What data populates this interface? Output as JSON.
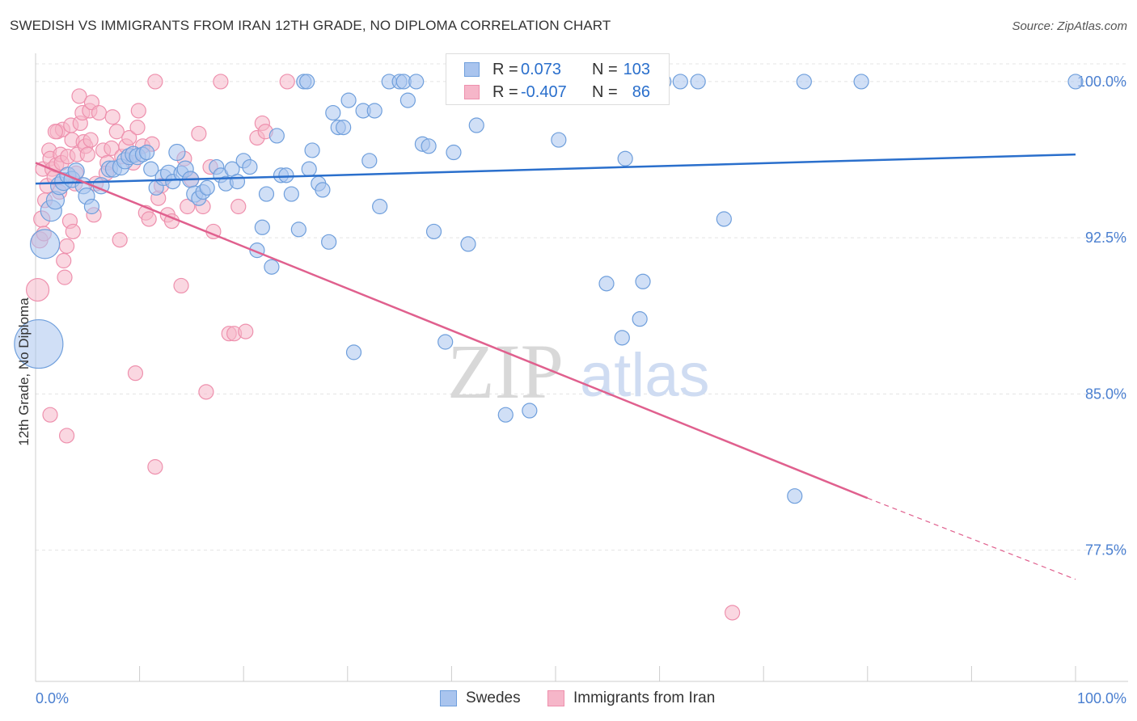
{
  "title": "SWEDISH VS IMMIGRANTS FROM IRAN 12TH GRADE, NO DIPLOMA CORRELATION CHART",
  "source": "Source: ZipAtlas.com",
  "watermark": {
    "zip": "ZIP",
    "atlas": "atlas"
  },
  "colors": {
    "swedes_fill": "#a9c4ee",
    "swedes_stroke": "#6f9fdc",
    "swedes_line": "#2a6fcc",
    "iran_fill": "#f6b6c9",
    "iran_stroke": "#ee90ad",
    "iran_line": "#e0608e",
    "tick_text": "#4a7fd0",
    "grid": "#e4e4e4"
  },
  "stats": {
    "swedes": {
      "r_label": "R =",
      "r_value": "0.073",
      "n_label": "N =",
      "n_value": "103"
    },
    "iran": {
      "r_label": "R =",
      "r_value": "-0.407",
      "n_label": "N =",
      "n_value": "86"
    }
  },
  "legend": {
    "swedes": "Swedes",
    "iran": "Immigrants from Iran"
  },
  "chart_data": {
    "type": "scatter",
    "title": "SWEDISH VS IMMIGRANTS FROM IRAN 12TH GRADE, NO DIPLOMA CORRELATION CHART",
    "xlabel": "",
    "ylabel": "12th Grade, No Diploma",
    "xlim": [
      0,
      100
    ],
    "ylim": [
      71.2,
      101.2
    ],
    "x_tick_labels": [
      "0.0%",
      "100.0%"
    ],
    "y_ticks": [
      77.5,
      85.0,
      92.5,
      100.0
    ],
    "y_tick_labels": [
      "77.5%",
      "85.0%",
      "92.5%",
      "100.0%"
    ],
    "grid": true,
    "legend_position": "bottom-center",
    "series": [
      {
        "name": "Swedes",
        "points": [
          [
            0.3,
            87.4,
            30
          ],
          [
            0.9,
            92.2,
            18
          ],
          [
            1.5,
            93.8,
            13
          ],
          [
            1.9,
            94.3,
            11
          ],
          [
            2.3,
            95.0,
            11
          ],
          [
            2.7,
            95.2,
            11
          ],
          [
            3.1,
            95.5,
            10
          ],
          [
            3.5,
            95.3,
            10
          ],
          [
            3.9,
            95.7,
            10
          ],
          [
            4.6,
            95.0,
            10
          ],
          [
            4.9,
            94.5,
            10
          ],
          [
            5.4,
            94.0,
            9
          ],
          [
            6.3,
            95.0,
            10
          ],
          [
            7.1,
            95.8,
            10
          ],
          [
            7.5,
            95.8,
            10
          ],
          [
            8.2,
            95.9,
            10
          ],
          [
            8.6,
            96.2,
            10
          ],
          [
            9.0,
            96.4,
            10
          ],
          [
            9.4,
            96.5,
            10
          ],
          [
            9.8,
            96.4,
            10
          ],
          [
            10.3,
            96.5,
            9
          ],
          [
            10.7,
            96.6,
            9
          ],
          [
            11.1,
            95.8,
            9
          ],
          [
            11.6,
            94.9,
            9
          ],
          [
            12.3,
            95.4,
            10
          ],
          [
            12.8,
            95.6,
            10
          ],
          [
            13.2,
            95.2,
            9
          ],
          [
            13.6,
            96.6,
            10
          ],
          [
            14.0,
            95.6,
            9
          ],
          [
            14.4,
            95.8,
            10
          ],
          [
            14.9,
            95.3,
            10
          ],
          [
            15.3,
            94.6,
            10
          ],
          [
            15.7,
            94.4,
            9
          ],
          [
            16.1,
            94.7,
            9
          ],
          [
            16.5,
            94.9,
            9
          ],
          [
            17.4,
            95.9,
            9
          ],
          [
            17.8,
            95.5,
            9
          ],
          [
            18.3,
            95.1,
            9
          ],
          [
            18.9,
            95.8,
            9
          ],
          [
            19.4,
            95.2,
            9
          ],
          [
            20.0,
            96.2,
            9
          ],
          [
            20.6,
            95.9,
            9
          ],
          [
            21.3,
            91.9,
            9
          ],
          [
            21.8,
            93.0,
            9
          ],
          [
            22.2,
            94.6,
            9
          ],
          [
            22.7,
            91.1,
            9
          ],
          [
            23.2,
            97.4,
            9
          ],
          [
            23.6,
            95.5,
            9
          ],
          [
            24.1,
            95.5,
            9
          ],
          [
            24.6,
            94.6,
            9
          ],
          [
            25.3,
            92.9,
            9
          ],
          [
            25.8,
            100.0,
            9
          ],
          [
            26.1,
            100.0,
            9
          ],
          [
            26.3,
            95.8,
            9
          ],
          [
            26.6,
            96.7,
            9
          ],
          [
            27.2,
            95.1,
            9
          ],
          [
            27.6,
            94.8,
            9
          ],
          [
            28.2,
            92.3,
            9
          ],
          [
            28.6,
            98.5,
            9
          ],
          [
            29.1,
            97.8,
            9
          ],
          [
            29.6,
            97.8,
            9
          ],
          [
            30.1,
            99.1,
            9
          ],
          [
            30.6,
            87.0,
            9
          ],
          [
            31.5,
            98.6,
            9
          ],
          [
            32.1,
            96.2,
            9
          ],
          [
            32.6,
            98.6,
            9
          ],
          [
            33.1,
            94.0,
            9
          ],
          [
            34.0,
            100.0,
            9
          ],
          [
            35.0,
            100.0,
            9
          ],
          [
            35.4,
            100.0,
            9
          ],
          [
            35.8,
            99.1,
            9
          ],
          [
            36.6,
            100.0,
            9
          ],
          [
            37.2,
            97.0,
            9
          ],
          [
            37.8,
            96.9,
            9
          ],
          [
            38.3,
            92.8,
            9
          ],
          [
            39.4,
            87.5,
            9
          ],
          [
            40.2,
            96.6,
            9
          ],
          [
            41.6,
            92.2,
            9
          ],
          [
            42.4,
            97.9,
            9
          ],
          [
            45.0,
            100.0,
            9
          ],
          [
            45.8,
            100.0,
            9
          ],
          [
            45.2,
            84.0,
            9
          ],
          [
            47.5,
            84.2,
            9
          ],
          [
            48.4,
            100.0,
            9
          ],
          [
            50.1,
            100.0,
            9
          ],
          [
            50.3,
            97.2,
            9
          ],
          [
            54.1,
            100.0,
            9
          ],
          [
            54.6,
            100.0,
            9
          ],
          [
            54.9,
            90.3,
            9
          ],
          [
            56.4,
            87.7,
            9
          ],
          [
            56.7,
            96.3,
            9
          ],
          [
            58.1,
            88.6,
            9
          ],
          [
            58.4,
            90.4,
            9
          ],
          [
            60.4,
            100.0,
            9
          ],
          [
            62.0,
            100.0,
            9
          ],
          [
            63.7,
            100.0,
            9
          ],
          [
            66.2,
            93.4,
            9
          ],
          [
            73.0,
            80.1,
            9
          ],
          [
            73.9,
            100.0,
            9
          ],
          [
            79.4,
            100.0,
            9
          ],
          [
            100.0,
            100.0,
            9
          ]
        ],
        "trend": {
          "x": [
            0,
            100
          ],
          "y": [
            95.1,
            96.5
          ]
        }
      },
      {
        "name": "Immigrants from Iran",
        "points": [
          [
            0.2,
            90.0,
            14
          ],
          [
            0.4,
            92.4,
            10
          ],
          [
            0.6,
            93.4,
            10
          ],
          [
            0.7,
            95.8,
            9
          ],
          [
            0.9,
            94.3,
            9
          ],
          [
            1.1,
            95.0,
            9
          ],
          [
            1.3,
            96.7,
            9
          ],
          [
            1.4,
            96.3,
            9
          ],
          [
            1.6,
            95.8,
            9
          ],
          [
            1.8,
            95.4,
            9
          ],
          [
            2.0,
            96.0,
            9
          ],
          [
            2.1,
            97.6,
            9
          ],
          [
            2.3,
            94.7,
            9
          ],
          [
            2.4,
            96.5,
            9
          ],
          [
            2.5,
            96.1,
            9
          ],
          [
            2.6,
            97.7,
            9
          ],
          [
            2.7,
            91.4,
            9
          ],
          [
            2.8,
            90.6,
            9
          ],
          [
            3.0,
            92.1,
            9
          ],
          [
            3.1,
            96.4,
            9
          ],
          [
            3.3,
            93.3,
            9
          ],
          [
            3.4,
            97.9,
            9
          ],
          [
            3.5,
            97.2,
            9
          ],
          [
            3.6,
            92.8,
            9
          ],
          [
            3.8,
            95.1,
            9
          ],
          [
            3.9,
            95.6,
            9
          ],
          [
            4.0,
            96.5,
            9
          ],
          [
            4.2,
            99.3,
            9
          ],
          [
            4.3,
            98.0,
            9
          ],
          [
            4.5,
            98.5,
            9
          ],
          [
            4.6,
            97.1,
            9
          ],
          [
            4.8,
            96.9,
            9
          ],
          [
            5.0,
            96.5,
            9
          ],
          [
            5.2,
            98.6,
            9
          ],
          [
            5.4,
            99.0,
            9
          ],
          [
            5.6,
            93.6,
            9
          ],
          [
            5.8,
            95.1,
            9
          ],
          [
            6.1,
            98.5,
            9
          ],
          [
            6.5,
            96.7,
            9
          ],
          [
            6.9,
            96.1,
            9
          ],
          [
            7.3,
            96.8,
            9
          ],
          [
            7.4,
            98.3,
            9
          ],
          [
            7.8,
            97.6,
            9
          ],
          [
            8.1,
            92.4,
            9
          ],
          [
            8.3,
            96.4,
            9
          ],
          [
            8.7,
            96.9,
            9
          ],
          [
            9.0,
            97.3,
            9
          ],
          [
            9.4,
            96.1,
            9
          ],
          [
            9.6,
            86.0,
            9
          ],
          [
            9.8,
            97.8,
            9
          ],
          [
            10.3,
            96.9,
            9
          ],
          [
            10.6,
            93.7,
            9
          ],
          [
            10.9,
            93.4,
            9
          ],
          [
            11.2,
            97.0,
            9
          ],
          [
            11.5,
            100.0,
            9
          ],
          [
            11.8,
            94.4,
            9
          ],
          [
            12.1,
            95.0,
            9
          ],
          [
            12.7,
            93.6,
            9
          ],
          [
            13.1,
            93.3,
            9
          ],
          [
            14.0,
            90.2,
            9
          ],
          [
            14.6,
            94.0,
            9
          ],
          [
            15.0,
            95.3,
            9
          ],
          [
            15.7,
            97.5,
            9
          ],
          [
            16.1,
            94.0,
            9
          ],
          [
            16.4,
            85.1,
            9
          ],
          [
            16.8,
            95.9,
            9
          ],
          [
            17.1,
            92.8,
            9
          ],
          [
            17.8,
            100.0,
            9
          ],
          [
            18.6,
            87.9,
            9
          ],
          [
            19.1,
            87.9,
            9
          ],
          [
            19.5,
            94.0,
            9
          ],
          [
            20.2,
            88.0,
            9
          ],
          [
            21.3,
            97.3,
            9
          ],
          [
            21.8,
            98.0,
            9
          ],
          [
            22.1,
            97.6,
            9
          ],
          [
            24.2,
            100.0,
            9
          ],
          [
            1.4,
            84.0,
            9
          ],
          [
            3.0,
            83.0,
            9
          ],
          [
            11.5,
            81.5,
            9
          ],
          [
            67.0,
            74.5,
            9
          ],
          [
            0.8,
            92.7,
            9
          ],
          [
            1.9,
            97.6,
            9
          ],
          [
            5.3,
            97.2,
            9
          ],
          [
            6.8,
            95.6,
            9
          ],
          [
            9.9,
            98.6,
            9
          ],
          [
            14.3,
            96.3,
            9
          ]
        ],
        "trend": {
          "x": [
            0,
            80
          ],
          "y": [
            96.1,
            80.0
          ]
        },
        "trend_dashed": {
          "x": [
            80,
            100
          ],
          "y": [
            80.0,
            76.1
          ]
        }
      }
    ]
  }
}
